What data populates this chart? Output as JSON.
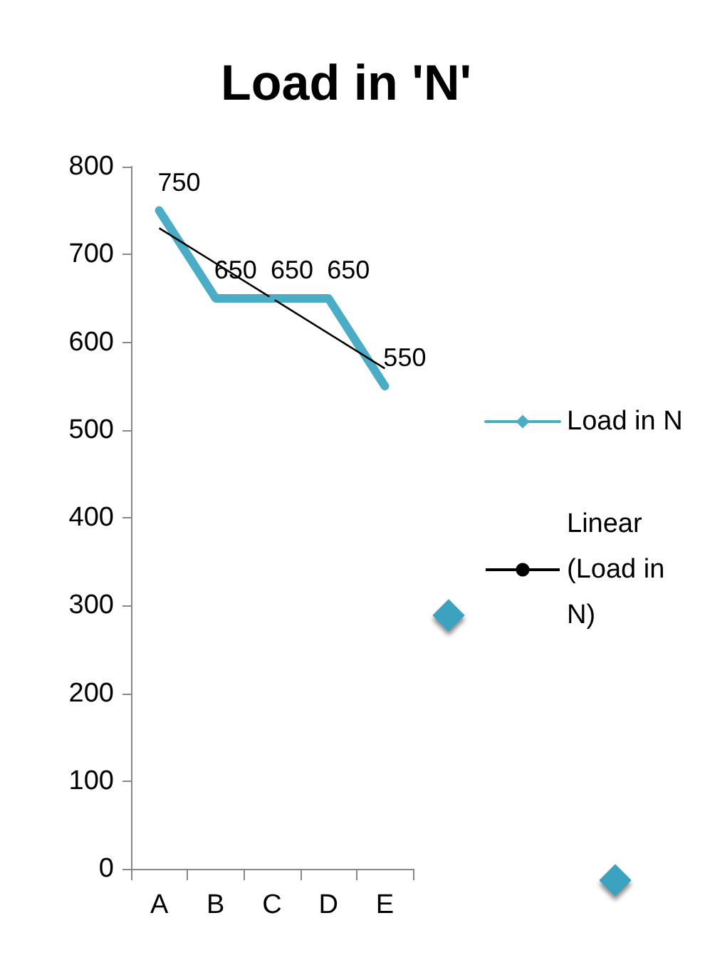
{
  "chart_data": {
    "type": "line",
    "title": "Load in 'N'",
    "categories": [
      "A",
      "B",
      "C",
      "D",
      "E"
    ],
    "series": [
      {
        "name": "Load in N",
        "color": "#4bacc6",
        "marker": "diamond",
        "values": [
          750,
          650,
          650,
          650,
          550
        ],
        "value_labels": [
          "750",
          "650",
          "650",
          "650",
          "550"
        ]
      },
      {
        "name": "Linear (Load in N)",
        "type": "line",
        "color": "#000000",
        "marker": "none",
        "x": [
          "A",
          "E"
        ],
        "values": [
          730,
          570
        ]
      }
    ],
    "legend": "right",
    "grid": false,
    "ylim": [
      0,
      800
    ],
    "yticks": [
      0,
      100,
      200,
      300,
      400,
      500,
      600,
      700,
      800
    ]
  }
}
